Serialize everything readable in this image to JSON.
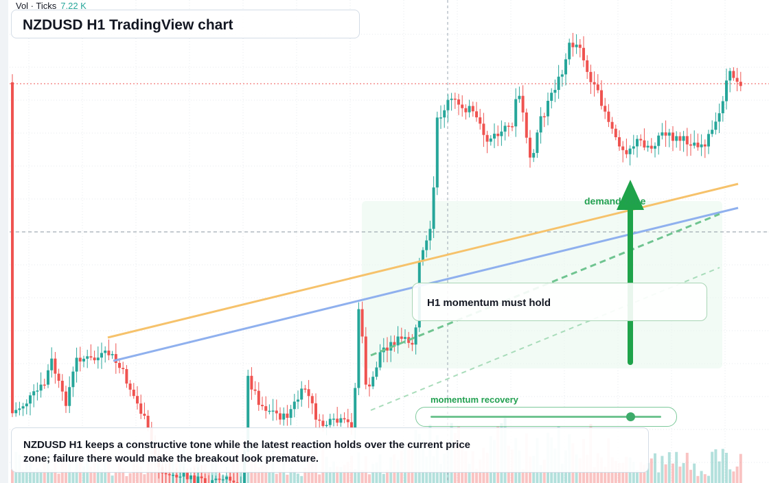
{
  "volume_label": {
    "name": "Vol · Ticks",
    "value": "7.22 K"
  },
  "title": "NZDUSD H1 TradingView chart",
  "callout": {
    "text": "H1 momentum must hold"
  },
  "zone_label": "demand zone",
  "slider": {
    "label": "momentum recovery",
    "level": 0.88
  },
  "summary": "NZDUSD H1 keeps a constructive tone while the latest reaction holds over the current price zone; failure there would make the breakout look premature.",
  "colors": {
    "up": "#26a69a",
    "down": "#ef5350",
    "accent_green": "#22a050",
    "orange_line": "#f6c26b",
    "blue_line": "#8fb0ee",
    "last_price": "#ef5350"
  },
  "icons": {
    "arrow": "up-arrow-icon",
    "slider_knob": "slider-knob-icon"
  }
}
